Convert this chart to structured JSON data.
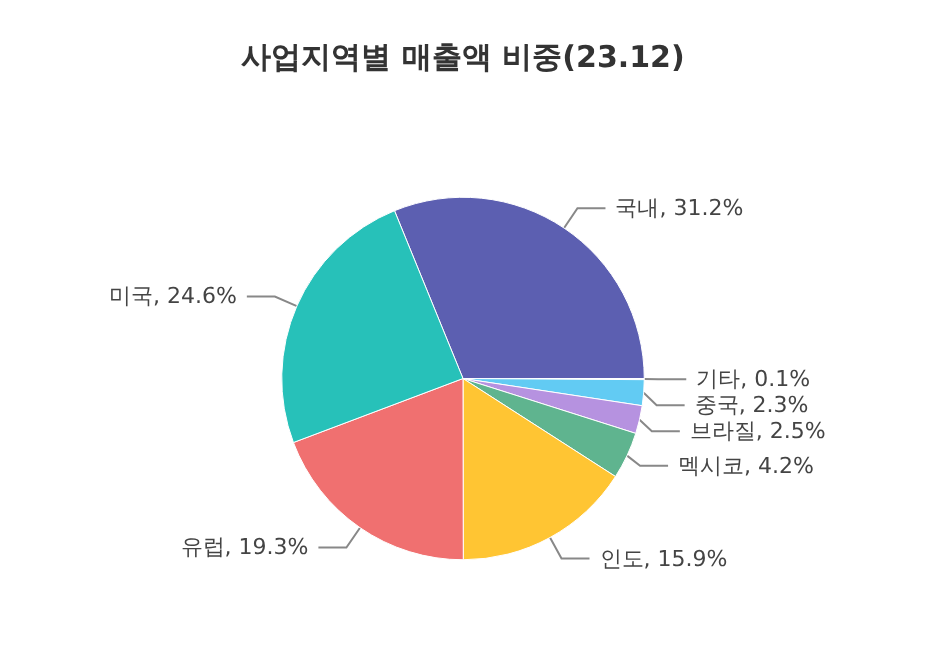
{
  "chart_data": {
    "type": "pie",
    "title": "사업지역별 매출액 비중(23.12)",
    "categories": [
      "국내",
      "기타",
      "중국",
      "브라질",
      "멕시코",
      "인도",
      "유럽",
      "미국"
    ],
    "values": [
      31.2,
      0.1,
      2.3,
      2.5,
      4.2,
      15.9,
      19.3,
      24.6
    ],
    "colors": [
      "#5c5fb1",
      "#b8c4d6",
      "#62cbf3",
      "#b692e0",
      "#5fb48f",
      "#ffc533",
      "#f07070",
      "#27c1b9"
    ],
    "value_labels": [
      ", 31.2%",
      ", 0.1%",
      ", 2.3%",
      ", 2.5%",
      ", 4.2%",
      ", 15.9%",
      ", 19.3%",
      ", 24.6%"
    ],
    "legend": false
  }
}
